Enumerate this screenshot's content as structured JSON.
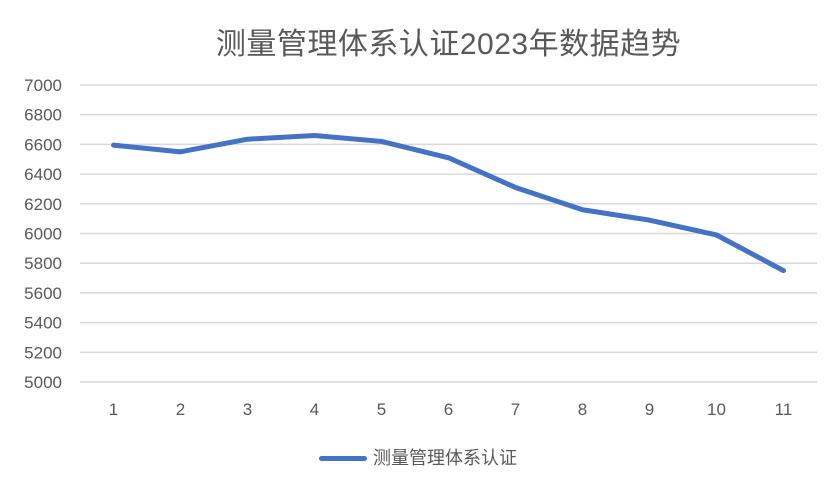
{
  "chart_data": {
    "type": "line",
    "title": "测量管理体系认证2023年数据趋势",
    "categories": [
      "1",
      "2",
      "3",
      "4",
      "5",
      "6",
      "7",
      "8",
      "9",
      "10",
      "11"
    ],
    "series": [
      {
        "name": "测量管理体系认证",
        "color": "#4472C4",
        "values": [
          6595,
          6550,
          6635,
          6660,
          6620,
          6510,
          6310,
          6160,
          6090,
          5990,
          5750
        ]
      }
    ],
    "xlabel": "",
    "ylabel": "",
    "ylim": [
      5000,
      7000
    ],
    "ytick_step": 200,
    "yticks": [
      5000,
      5200,
      5400,
      5600,
      5800,
      6000,
      6200,
      6400,
      6600,
      6800,
      7000
    ],
    "grid": true,
    "legend_position": "bottom",
    "colors": {
      "line": "#4472C4",
      "gridline": "#D9D9D9",
      "axis_text": "#595959",
      "title_text": "#595959",
      "background": "#FFFFFF"
    }
  }
}
